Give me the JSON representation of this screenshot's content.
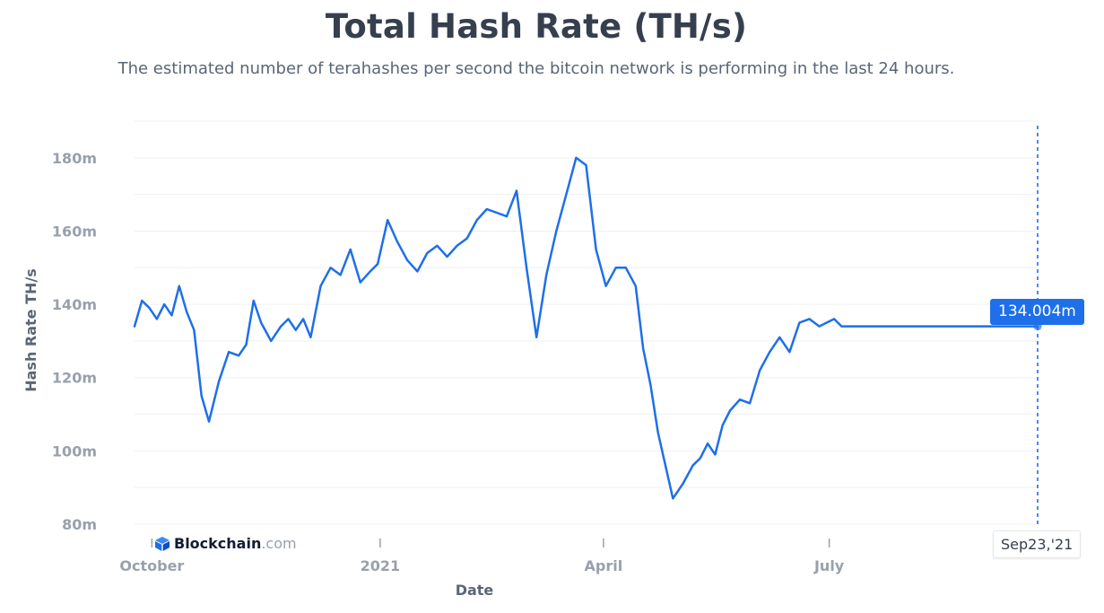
{
  "brand": {
    "name": "Blockchain",
    "suffix": ".com",
    "accent": "#1e6fe9"
  },
  "hover": {
    "value_label": "134.004m",
    "date_label": "Sep23,'21",
    "value": 134.004
  },
  "chart_data": {
    "type": "line",
    "title": "Total Hash Rate (TH/s)",
    "subtitle": "The estimated number of terahashes per second the bitcoin network is performing in the last 24 hours.",
    "xlabel": "Date",
    "ylabel": "Hash Rate TH/s",
    "ylim": [
      80,
      190
    ],
    "yticks": [
      80,
      100,
      120,
      140,
      160,
      180
    ],
    "ytick_labels": [
      "80m",
      "100m",
      "120m",
      "140m",
      "160m",
      "180m"
    ],
    "xtick_labels": [
      "October",
      "2021",
      "April",
      "July"
    ],
    "xtick_dates": [
      "2020-10-01",
      "2021-01-01",
      "2021-04-01",
      "2021-07-01"
    ],
    "grid": true,
    "color": "#1e6fe9",
    "series": [
      {
        "name": "",
        "x": [
          "2020-09-24",
          "2020-09-27",
          "2020-09-30",
          "2020-10-03",
          "2020-10-06",
          "2020-10-09",
          "2020-10-12",
          "2020-10-15",
          "2020-10-18",
          "2020-10-21",
          "2020-10-24",
          "2020-10-28",
          "2020-11-01",
          "2020-11-05",
          "2020-11-08",
          "2020-11-11",
          "2020-11-14",
          "2020-11-18",
          "2020-11-22",
          "2020-11-25",
          "2020-11-28",
          "2020-12-01",
          "2020-12-04",
          "2020-12-08",
          "2020-12-12",
          "2020-12-16",
          "2020-12-20",
          "2020-12-24",
          "2020-12-28",
          "2020-12-31",
          "2021-01-04",
          "2021-01-08",
          "2021-01-12",
          "2021-01-16",
          "2021-01-20",
          "2021-01-24",
          "2021-01-28",
          "2021-02-01",
          "2021-02-05",
          "2021-02-09",
          "2021-02-13",
          "2021-02-17",
          "2021-02-21",
          "2021-02-25",
          "2021-03-01",
          "2021-03-05",
          "2021-03-09",
          "2021-03-13",
          "2021-03-17",
          "2021-03-21",
          "2021-03-25",
          "2021-03-29",
          "2021-04-02",
          "2021-04-06",
          "2021-04-10",
          "2021-04-14",
          "2021-04-17",
          "2021-04-20",
          "2021-04-23",
          "2021-04-26",
          "2021-04-29",
          "2021-05-03",
          "2021-05-07",
          "2021-05-10",
          "2021-05-13",
          "2021-05-16",
          "2021-05-19",
          "2021-05-22",
          "2021-05-26",
          "2021-05-30",
          "2021-06-03",
          "2021-06-07",
          "2021-06-11",
          "2021-06-15",
          "2021-06-19",
          "2021-06-23",
          "2021-06-27",
          "2021-06-30",
          "2021-07-03",
          "2021-07-06",
          "2021-07-10",
          "2021-07-14",
          "2021-07-18",
          "2021-07-22",
          "2021-07-26",
          "2021-07-30",
          "2021-08-03",
          "2021-08-07",
          "2021-08-11",
          "2021-08-15",
          "2021-08-19",
          "2021-08-23",
          "2021-08-27",
          "2021-08-31",
          "2021-09-04",
          "2021-09-08",
          "2021-09-12",
          "2021-09-16",
          "2021-09-20",
          "2021-09-23"
        ],
        "values": [
          134,
          141,
          139,
          136,
          140,
          137,
          145,
          138,
          133,
          115,
          108,
          119,
          127,
          126,
          129,
          141,
          135,
          130,
          134,
          136,
          133,
          136,
          131,
          145,
          150,
          148,
          155,
          146,
          149,
          151,
          163,
          157,
          152,
          149,
          154,
          156,
          153,
          156,
          158,
          163,
          166,
          165,
          164,
          171,
          150,
          131,
          148,
          160,
          170,
          180,
          178,
          155,
          145,
          150,
          150,
          145,
          128,
          118,
          105,
          96,
          87,
          91,
          96,
          98,
          102,
          99,
          107,
          111,
          114,
          113,
          122,
          127,
          131,
          127,
          135,
          136,
          134,
          135,
          136,
          134,
          134,
          134,
          134,
          134,
          134,
          134,
          134,
          134,
          134,
          134,
          134,
          134,
          134,
          134,
          134,
          134,
          134,
          134,
          134,
          134
        ]
      }
    ]
  }
}
